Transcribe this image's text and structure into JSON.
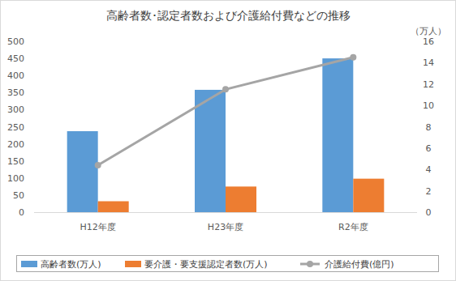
{
  "chart_data": {
    "type": "bar",
    "title": "高齢者数･認定者数および介護給付費などの推移",
    "y2label": "（万人）",
    "categories": [
      "H12年度",
      "H23年度",
      "R2年度"
    ],
    "series": [
      {
        "name": "高齢者数(万人)",
        "type": "bar",
        "color": "#5b9bd5",
        "values": [
          237,
          358,
          450
        ]
      },
      {
        "name": "要介護・要支援認定者数(万人)",
        "type": "bar",
        "color": "#ed7d31",
        "values": [
          32,
          75,
          98
        ]
      },
      {
        "name": "介護給付費(億円)",
        "type": "line",
        "axis": "y2",
        "color": "#a5a5a5",
        "marker": "circle",
        "values": [
          4.4,
          11.5,
          14.5
        ]
      }
    ],
    "ylim": [
      0,
      500
    ],
    "yticks": [
      0,
      50,
      100,
      150,
      200,
      250,
      300,
      350,
      400,
      450,
      500
    ],
    "y2lim": [
      0,
      16
    ],
    "y2ticks": [
      0,
      2,
      4,
      6,
      8,
      10,
      12,
      14,
      16
    ],
    "grid": false,
    "legend": "bottom"
  }
}
